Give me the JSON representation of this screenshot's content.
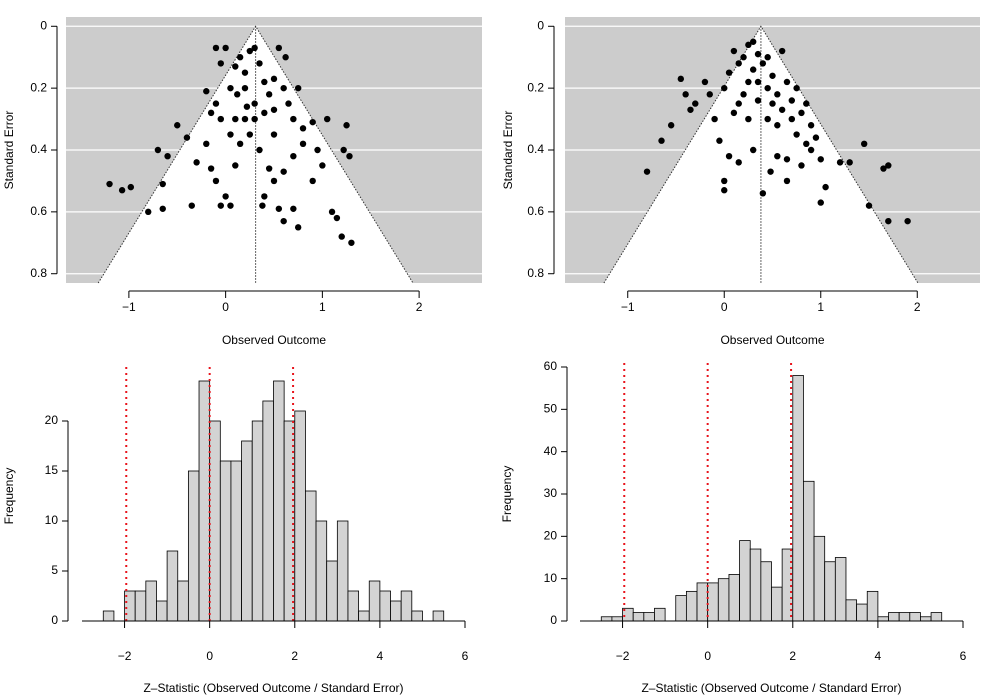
{
  "chart_data": [
    {
      "type": "funnel",
      "xlabel": "Observed Outcome",
      "ylabel": "Standard Error",
      "xlim": [
        -1.65,
        2.65
      ],
      "ylim": [
        0.83,
        -0.03
      ],
      "xticks": [
        {
          "value": -1,
          "label": "−1"
        },
        0,
        1,
        2
      ],
      "yticks": [
        0,
        0.2,
        0.4,
        0.6,
        0.8
      ],
      "refline": 0.31,
      "funnel_z": 1.96,
      "background": "#cccccc",
      "region_color": "#ffffff",
      "grid": true,
      "color": "#000000",
      "x": [
        -1.2,
        -1.07,
        -0.98,
        -0.8,
        -0.7,
        -0.65,
        -0.6,
        -0.65,
        -0.5,
        -0.4,
        -0.35,
        -0.3,
        -0.2,
        -0.15,
        -0.1,
        -0.05,
        0,
        0.05,
        0.1,
        -0.1,
        0,
        0.05,
        -0.05,
        -0.15,
        -0.2,
        -0.1,
        0.1,
        0.15,
        0.2,
        0.25,
        0.3,
        0.35,
        0.4,
        0.45,
        0.5,
        0.55,
        0.6,
        0.65,
        0.7,
        0.75,
        0.8,
        0.9,
        0.95,
        1.0,
        1.05,
        0.2,
        0.25,
        0.3,
        0.1,
        0.15,
        0.35,
        0.45,
        0.5,
        0.6,
        0.7,
        0.8,
        0.4,
        0.38,
        0.55,
        0.6,
        0.7,
        0.75,
        0.9,
        1.1,
        1.15,
        1.2,
        1.3,
        1.22,
        1.28,
        1.25,
        0.2,
        0.3,
        0.4,
        0.5,
        0.05,
        -0.05,
        0.12,
        0.22,
        0.62,
        0.5
      ],
      "values": [
        0.51,
        0.53,
        0.52,
        0.6,
        0.4,
        0.51,
        0.42,
        0.59,
        0.32,
        0.36,
        0.58,
        0.44,
        0.38,
        0.46,
        0.5,
        0.58,
        0.55,
        0.58,
        0.45,
        0.07,
        0.07,
        0.35,
        0.3,
        0.28,
        0.21,
        0.25,
        0.13,
        0.1,
        0.15,
        0.08,
        0.07,
        0.12,
        0.18,
        0.22,
        0.17,
        0.07,
        0.2,
        0.25,
        0.3,
        0.2,
        0.33,
        0.31,
        0.4,
        0.45,
        0.3,
        0.3,
        0.35,
        0.25,
        0.3,
        0.38,
        0.4,
        0.46,
        0.5,
        0.47,
        0.42,
        0.38,
        0.55,
        0.58,
        0.59,
        0.63,
        0.59,
        0.65,
        0.5,
        0.6,
        0.62,
        0.68,
        0.7,
        0.4,
        0.42,
        0.32,
        0.2,
        0.3,
        0.28,
        0.35,
        0.2,
        0.12,
        0.22,
        0.26,
        0.1,
        0.27
      ]
    },
    {
      "type": "funnel",
      "xlabel": "Observed Outcome",
      "ylabel": "Standard Error",
      "xlim": [
        -1.65,
        2.65
      ],
      "ylim": [
        0.83,
        -0.03
      ],
      "xticks": [
        {
          "value": -1,
          "label": "−1"
        },
        0,
        1,
        2
      ],
      "yticks": [
        0,
        0.2,
        0.4,
        0.6,
        0.8
      ],
      "refline": 0.38,
      "funnel_z": 1.96,
      "background": "#cccccc",
      "region_color": "#ffffff",
      "grid": true,
      "color": "#000000",
      "x": [
        -0.8,
        -0.65,
        -0.55,
        -0.45,
        -0.4,
        -0.35,
        -0.3,
        -0.2,
        -0.15,
        -0.1,
        -0.05,
        0,
        0,
        0,
        0.05,
        0.05,
        0.1,
        0.1,
        0.15,
        0.15,
        0.2,
        0.2,
        0.25,
        0.25,
        0.3,
        0.3,
        0.35,
        0.35,
        0.4,
        0.4,
        0.45,
        0.45,
        0.5,
        0.5,
        0.55,
        0.55,
        0.6,
        0.6,
        0.65,
        0.65,
        0.7,
        0.7,
        0.75,
        0.75,
        0.8,
        0.8,
        0.85,
        0.85,
        0.9,
        0.9,
        0.95,
        1.0,
        1.0,
        1.05,
        1.2,
        1.3,
        1.45,
        1.5,
        1.65,
        1.7,
        1.7,
        1.9,
        0.25,
        0.15,
        0.35,
        0.55,
        0.48,
        0.65,
        0.3,
        0.45
      ],
      "values": [
        0.47,
        0.37,
        0.32,
        0.17,
        0.22,
        0.27,
        0.25,
        0.18,
        0.22,
        0.3,
        0.37,
        0.2,
        0.5,
        0.53,
        0.15,
        0.42,
        0.08,
        0.28,
        0.12,
        0.44,
        0.1,
        0.22,
        0.06,
        0.3,
        0.14,
        0.4,
        0.09,
        0.18,
        0.12,
        0.54,
        0.2,
        0.3,
        0.16,
        0.25,
        0.22,
        0.32,
        0.08,
        0.27,
        0.18,
        0.43,
        0.3,
        0.24,
        0.2,
        0.35,
        0.28,
        0.45,
        0.25,
        0.38,
        0.32,
        0.4,
        0.36,
        0.43,
        0.57,
        0.52,
        0.44,
        0.44,
        0.38,
        0.58,
        0.46,
        0.45,
        0.63,
        0.63,
        0.18,
        0.25,
        0.24,
        0.42,
        0.47,
        0.5,
        0.05,
        0.1
      ]
    },
    {
      "type": "histogram",
      "xlabel": "Z–Statistic (Observed Outcome / Standard Error)",
      "ylabel": "Frequency",
      "xlim": [
        -3,
        6
      ],
      "ylim": [
        0,
        25
      ],
      "xticks": [
        {
          "value": -2,
          "label": "−2"
        },
        0,
        2,
        4,
        6
      ],
      "yticks": [
        0,
        5,
        10,
        15,
        20
      ],
      "bins": [
        -2.5,
        -2.25,
        -2,
        -1.75,
        -1.5,
        -1.25,
        -1,
        -0.75,
        -0.5,
        -0.25,
        0,
        0.25,
        0.5,
        0.75,
        1,
        1.25,
        1.5,
        1.75,
        2,
        2.25,
        2.5,
        2.75,
        3,
        3.25,
        3.5,
        3.75,
        4,
        4.25,
        4.5,
        4.75,
        5,
        5.25,
        5.5
      ],
      "values": [
        1,
        0,
        3,
        3,
        4,
        2,
        7,
        4,
        15,
        24,
        20,
        16,
        16,
        18,
        20,
        22,
        24,
        20,
        21,
        13,
        10,
        6,
        10,
        3,
        1,
        4,
        3,
        2,
        3,
        1,
        0,
        1
      ],
      "color": "#d3d3d3",
      "vlines": [
        -1.96,
        0,
        1.96
      ],
      "vline_color": "#e8141c"
    },
    {
      "type": "histogram",
      "xlabel": "Z–Statistic (Observed Outcome / Standard Error)",
      "ylabel": "Frequency",
      "xlim": [
        -3,
        6
      ],
      "ylim": [
        0,
        60
      ],
      "xticks": [
        {
          "value": -2,
          "label": "−2"
        },
        0,
        2,
        4,
        6
      ],
      "yticks": [
        0,
        10,
        20,
        30,
        40,
        50,
        60
      ],
      "bins": [
        -2.5,
        -2.25,
        -2,
        -1.75,
        -1.5,
        -1.25,
        -1,
        -0.75,
        -0.5,
        -0.25,
        0,
        0.25,
        0.5,
        0.75,
        1,
        1.25,
        1.5,
        1.75,
        2,
        2.25,
        2.5,
        2.75,
        3,
        3.25,
        3.5,
        3.75,
        4,
        4.25,
        4.5,
        4.75,
        5,
        5.25,
        5.5
      ],
      "values": [
        1,
        1,
        3,
        2,
        2,
        3,
        0,
        6,
        7,
        9,
        9,
        10,
        11,
        19,
        17,
        14,
        8,
        17,
        58,
        33,
        20,
        14,
        15,
        5,
        4,
        7,
        1,
        2,
        2,
        2,
        1,
        2
      ],
      "color": "#d3d3d3",
      "vlines": [
        -1.96,
        0,
        1.96
      ],
      "vline_color": "#e8141c"
    }
  ]
}
